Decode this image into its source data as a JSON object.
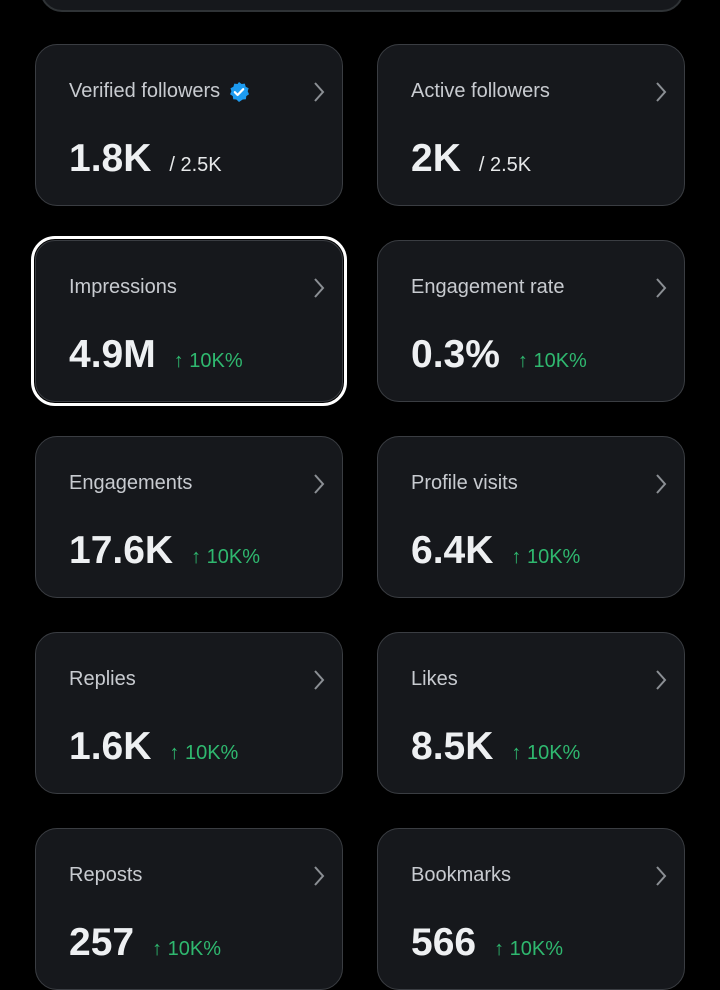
{
  "cards": [
    {
      "label": "Verified followers",
      "value": "1.8K",
      "total": "/ 2.5K",
      "verified": true
    },
    {
      "label": "Active followers",
      "value": "2K",
      "total": "/ 2.5K"
    },
    {
      "label": "Impressions",
      "value": "4.9M",
      "change": "↑ 10K%",
      "focused": true
    },
    {
      "label": "Engagement rate",
      "value": "0.3%",
      "change": "↑ 10K%"
    },
    {
      "label": "Engagements",
      "value": "17.6K",
      "change": "↑ 10K%"
    },
    {
      "label": "Profile visits",
      "value": "6.4K",
      "change": "↑ 10K%"
    },
    {
      "label": "Replies",
      "value": "1.6K",
      "change": "↑ 10K%"
    },
    {
      "label": "Likes",
      "value": "8.5K",
      "change": "↑ 10K%"
    },
    {
      "label": "Reposts",
      "value": "257",
      "change": "↑ 10K%"
    },
    {
      "label": "Bookmarks",
      "value": "566",
      "change": "↑ 10K%"
    }
  ]
}
